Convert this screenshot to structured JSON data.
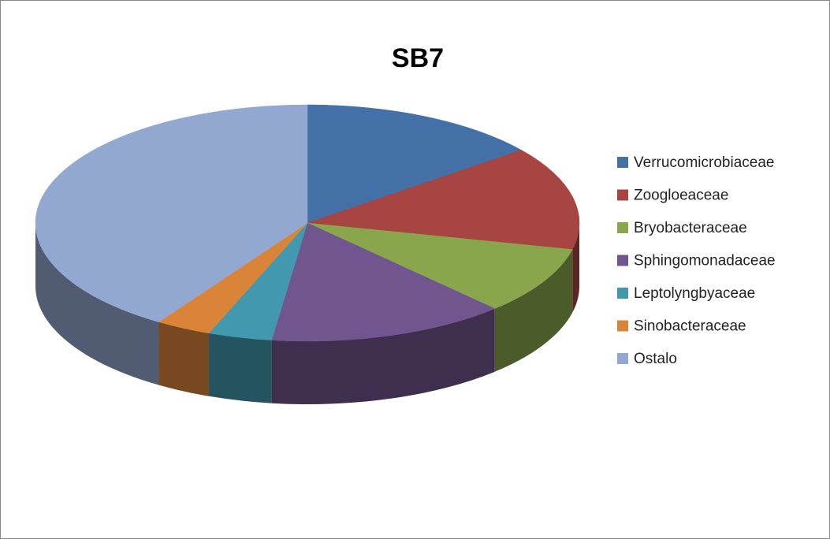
{
  "chart_data": {
    "type": "pie",
    "title": "SB7",
    "categories": [
      "Verrucomicrobiaceae",
      "Zoogloeaceae",
      "Bryobacteraceae",
      "Sphingomonadaceae",
      "Leptolyngbyaceae",
      "Sinobacteraceae",
      "Ostalo"
    ],
    "values": [
      14.4,
      14.2,
      9.3,
      14.2,
      3.8,
      3.3,
      40.8
    ],
    "colors": [
      "#4470a8",
      "#a64542",
      "#8aa64c",
      "#71558e",
      "#4198af",
      "#da843a",
      "#93a8d0"
    ],
    "legend": "right"
  }
}
